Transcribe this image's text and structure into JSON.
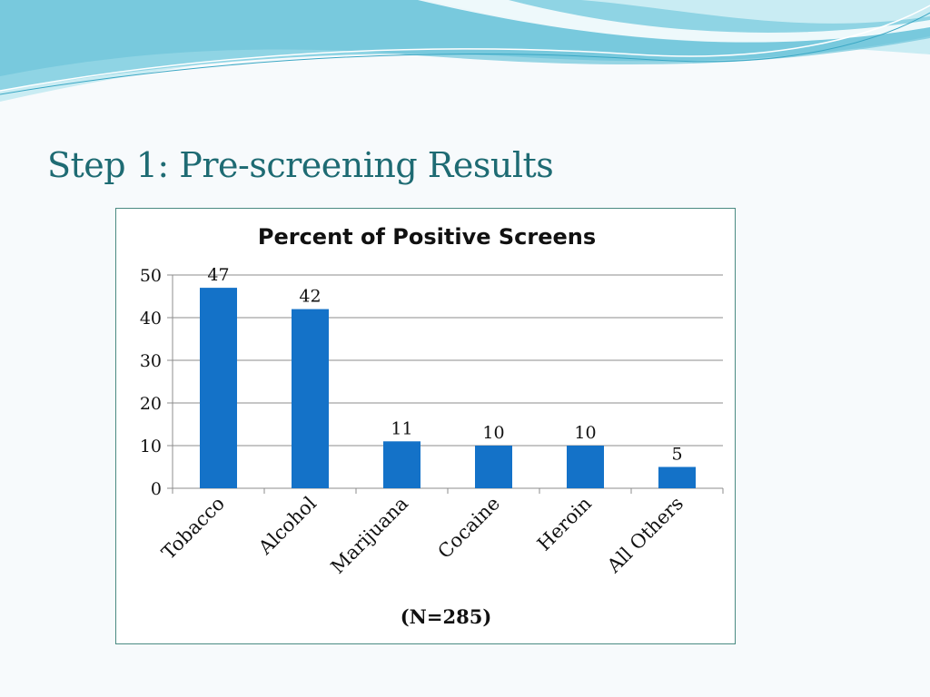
{
  "slide": {
    "title": "Step 1: Pre-screening Results",
    "colors": {
      "title": "#1e6b73",
      "wave_light": "#bfe7f0",
      "wave_mid": "#86d0e0",
      "wave_dark": "#4fb6cf"
    }
  },
  "chart_data": {
    "type": "bar",
    "title": "Percent of Positive Screens",
    "xlabel": "(N=285)",
    "ylabel": "",
    "categories": [
      "Tobacco",
      "Alcohol",
      "Marijuana",
      "Cocaine",
      "Heroin",
      "All Others"
    ],
    "values": [
      47,
      42,
      11,
      10,
      10,
      5
    ],
    "data_labels": [
      "47",
      "42",
      "11",
      "10",
      "10",
      "5"
    ],
    "ylim": [
      0,
      50
    ],
    "yticks": [
      "0",
      "10",
      "20",
      "30",
      "40",
      "50"
    ],
    "grid": true,
    "legend": "none",
    "bar_color": "#1472c8"
  }
}
